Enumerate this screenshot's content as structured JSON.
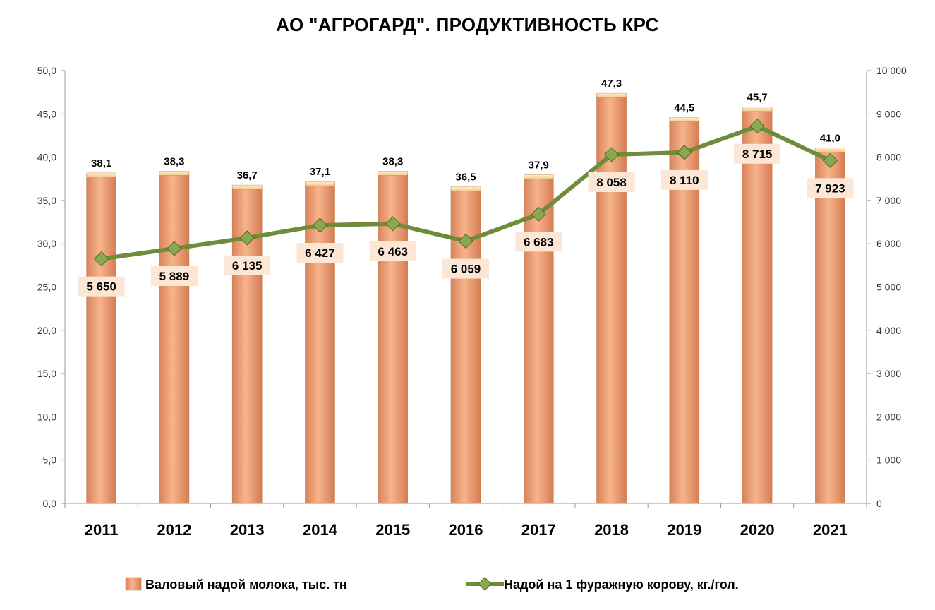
{
  "chart_data": {
    "type": "bar+line",
    "title": "АО \"АГРОГАРД\". ПРОДУКТИВНОСТЬ КРС",
    "categories": [
      "2011",
      "2012",
      "2013",
      "2014",
      "2015",
      "2016",
      "2017",
      "2018",
      "2019",
      "2020",
      "2021"
    ],
    "series": [
      {
        "name": "Валовый надой молока, тыс. тн",
        "type": "bar",
        "axis": "left",
        "values": [
          38.1,
          38.3,
          36.7,
          37.1,
          38.3,
          36.5,
          37.9,
          47.3,
          44.5,
          45.7,
          41.0
        ],
        "labels": [
          "38,1",
          "38,3",
          "36,7",
          "37,1",
          "38,3",
          "36,5",
          "37,9",
          "47,3",
          "44,5",
          "45,7",
          "41,0"
        ],
        "color": "#F0A878"
      },
      {
        "name": "Надой на 1 фуражную корову, кг./гол.",
        "type": "line",
        "axis": "right",
        "values": [
          5650,
          5889,
          6135,
          6427,
          6463,
          6059,
          6683,
          8058,
          8110,
          8715,
          7923
        ],
        "labels": [
          "5 650",
          "5 889",
          "6 135",
          "6 427",
          "6 463",
          "6 059",
          "6 683",
          "8 058",
          "8 110",
          "8 715",
          "7 923"
        ],
        "color": "#6E8C3A"
      }
    ],
    "y_left": {
      "range": [
        0,
        50
      ],
      "ticks": [
        0,
        5,
        10,
        15,
        20,
        25,
        30,
        35,
        40,
        45,
        50
      ],
      "tick_labels": [
        "0,0",
        "5,0",
        "10,0",
        "15,0",
        "20,0",
        "25,0",
        "30,0",
        "35,0",
        "40,0",
        "45,0",
        "50,0"
      ]
    },
    "y_right": {
      "range": [
        0,
        10000
      ],
      "ticks": [
        0,
        1000,
        2000,
        3000,
        4000,
        5000,
        6000,
        7000,
        8000,
        9000,
        10000
      ],
      "tick_labels": [
        "0",
        "1 000",
        "2 000",
        "3 000",
        "4 000",
        "5 000",
        "6 000",
        "7 000",
        "8 000",
        "9 000",
        "10 000"
      ]
    },
    "grid": false,
    "legend": "bottom"
  }
}
